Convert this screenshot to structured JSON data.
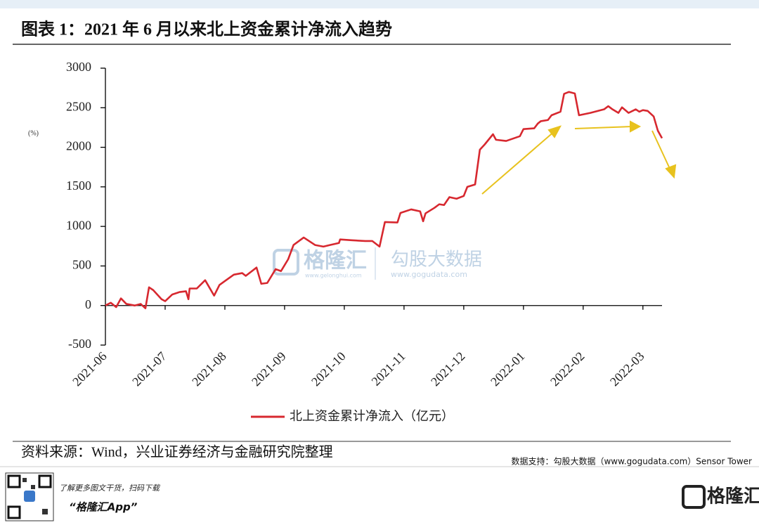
{
  "chart_data": {
    "type": "line",
    "title": "图表 1：2021 年 6 月以来北上资金累计净流入趋势",
    "ylabel": "(%)",
    "x": [
      0,
      0.09,
      0.18,
      0.26,
      0.35,
      0.49,
      0.59,
      0.67,
      0.73,
      0.8,
      0.94,
      1.0,
      1.12,
      1.24,
      1.35,
      1.39,
      1.41,
      1.53,
      1.67,
      1.82,
      1.91,
      2.02,
      2.15,
      2.29,
      2.35,
      2.53,
      2.61,
      2.71,
      2.85,
      2.94,
      3.06,
      3.15,
      3.32,
      3.41,
      3.51,
      3.65,
      3.76,
      3.91,
      3.93,
      4.12,
      4.35,
      4.47,
      4.59,
      4.68,
      4.89,
      4.94,
      5.12,
      5.27,
      5.32,
      5.36,
      5.51,
      5.59,
      5.67,
      5.76,
      5.88,
      6.0,
      6.06,
      6.19,
      6.27,
      6.35,
      6.49,
      6.54,
      6.71,
      6.94,
      7.0,
      7.18,
      7.24,
      7.29,
      7.41,
      7.47,
      7.62,
      7.68,
      7.76,
      7.86,
      7.93,
      8.12,
      8.35,
      8.42,
      8.49,
      8.59,
      8.65,
      8.76,
      8.88,
      8.94,
      9.0,
      9.08,
      9.18,
      9.25,
      9.32
    ],
    "series": [
      {
        "name": "北上资金累计净流入（亿元）",
        "color": "#d7282f",
        "values": [
          0,
          35,
          -20,
          90,
          20,
          0,
          20,
          -35,
          230,
          195,
          80,
          55,
          140,
          170,
          180,
          80,
          215,
          215,
          320,
          125,
          260,
          320,
          390,
          410,
          375,
          480,
          275,
          285,
          460,
          435,
          585,
          765,
          860,
          815,
          765,
          745,
          765,
          790,
          835,
          825,
          815,
          815,
          745,
          1055,
          1050,
          1170,
          1215,
          1190,
          1065,
          1165,
          1235,
          1280,
          1270,
          1370,
          1350,
          1385,
          1500,
          1530,
          1970,
          2035,
          2165,
          2095,
          2080,
          2140,
          2230,
          2240,
          2300,
          2330,
          2345,
          2405,
          2450,
          2675,
          2700,
          2680,
          2405,
          2435,
          2480,
          2520,
          2480,
          2435,
          2505,
          2435,
          2480,
          2450,
          2470,
          2460,
          2390,
          2210,
          2115
        ]
      }
    ],
    "xlim": [
      0,
      9.32
    ],
    "xticks": [
      {
        "value": 0,
        "label": "2021-06"
      },
      {
        "value": 1,
        "label": "2021-07"
      },
      {
        "value": 2,
        "label": "2021-08"
      },
      {
        "value": 3,
        "label": "2021-09"
      },
      {
        "value": 4,
        "label": "2021-10"
      },
      {
        "value": 5,
        "label": "2021-11"
      },
      {
        "value": 6,
        "label": "2021-12"
      },
      {
        "value": 7,
        "label": "2022-01"
      },
      {
        "value": 8,
        "label": "2022-02"
      },
      {
        "value": 9,
        "label": "2022-03"
      }
    ],
    "ylim": [
      -500,
      3000
    ],
    "yticks": [
      -500,
      0,
      500,
      1000,
      1500,
      2000,
      2500,
      3000
    ],
    "grid": false
  },
  "source": "资料来源：Wind，兴业证券经济与金融研究院整理",
  "watermark": {
    "brand": "格隆汇",
    "brand_url": "www.gelonghui.com",
    "data_brand": "勾股大数据",
    "data_url": "www.gogudata.com"
  },
  "footer": {
    "data_support": "数据支持：勾股大数据（www.gogudata.com）Sensor Tower",
    "prompt": "了解更多图文干货，扫码下载",
    "app": "“格隆汇App”",
    "logo": "格隆汇"
  }
}
